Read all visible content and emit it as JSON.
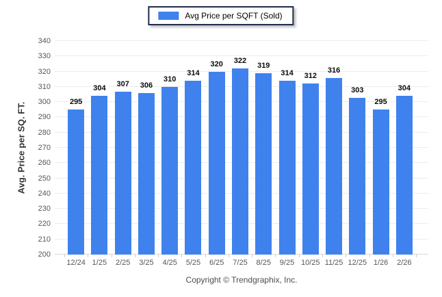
{
  "legend": {
    "label": "Avg Price per SQFT (Sold)"
  },
  "footer": {
    "copyright": "Copyright © Trendgraphix, Inc."
  },
  "colors": {
    "bar": "#3f82ee",
    "legend_border": "#1e2b4d",
    "grid": "#ececec",
    "baseline": "#d8d8d8",
    "tick_text": "#595551",
    "value_text": "#0a0a0a"
  },
  "chart_data": {
    "type": "bar",
    "title": "Avg Price per SQFT (Sold)",
    "categories": [
      "12/24",
      "1/25",
      "2/25",
      "3/25",
      "4/25",
      "5/25",
      "6/25",
      "7/25",
      "8/25",
      "9/25",
      "10/25",
      "11/25",
      "12/25",
      "1/26",
      "2/26"
    ],
    "values": [
      295,
      304,
      307,
      306,
      310,
      314,
      320,
      322,
      319,
      314,
      312,
      316,
      303,
      295,
      304
    ],
    "xlabel": "",
    "ylabel": "Avg. Price per SQ. FT.",
    "ylim": [
      200,
      340
    ],
    "ytick_step": 10,
    "grid": true,
    "legend_position": "top-center",
    "value_labels": true
  }
}
